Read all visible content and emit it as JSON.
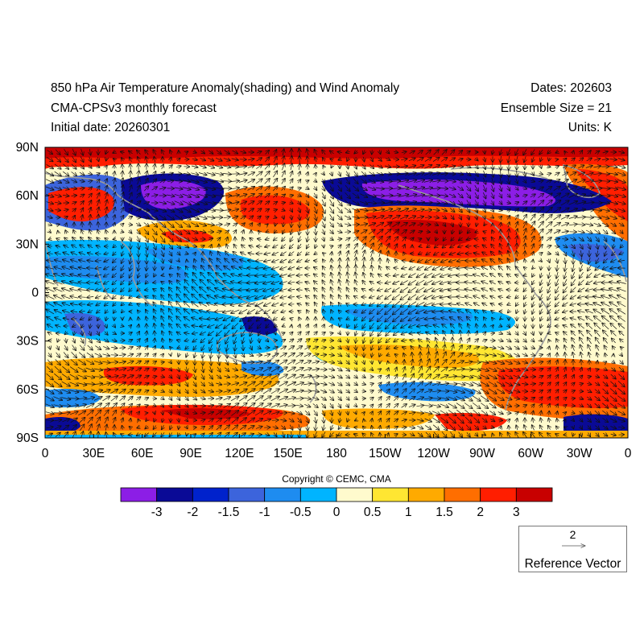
{
  "header": {
    "title": "850 hPa Air Temperature Anomaly(shading) and Wind Anomaly",
    "model": "CMA-CPSv3 monthly forecast",
    "initial_date": "Initial date: 20260301",
    "dates": "Dates: 202603",
    "ensemble": "Ensemble Size = 21",
    "units": "Units: K"
  },
  "axes": {
    "lat_labels": [
      "90N",
      "60N",
      "30N",
      "0",
      "30S",
      "60S",
      "90S"
    ],
    "lon_labels": [
      "0",
      "30E",
      "60E",
      "90E",
      "120E",
      "150E",
      "180",
      "150W",
      "120W",
      "90W",
      "60W",
      "30W",
      "0"
    ]
  },
  "colorbar": {
    "colors": [
      "#8c1ee6",
      "#0a0a96",
      "#0022cc",
      "#3c64dc",
      "#1e8cf0",
      "#00b4ff",
      "#fffacd",
      "#ffe632",
      "#ffaa00",
      "#ff6e00",
      "#ff1e00",
      "#c80000"
    ],
    "labels": [
      "-3",
      "-2",
      "-1.5",
      "-1",
      "-0.5",
      "0",
      "0.5",
      "1",
      "1.5",
      "2",
      "3"
    ]
  },
  "copyright": "Copyright © CEMC, CMA",
  "reference_vector": {
    "magnitude": "2",
    "label": "Reference Vector"
  }
}
